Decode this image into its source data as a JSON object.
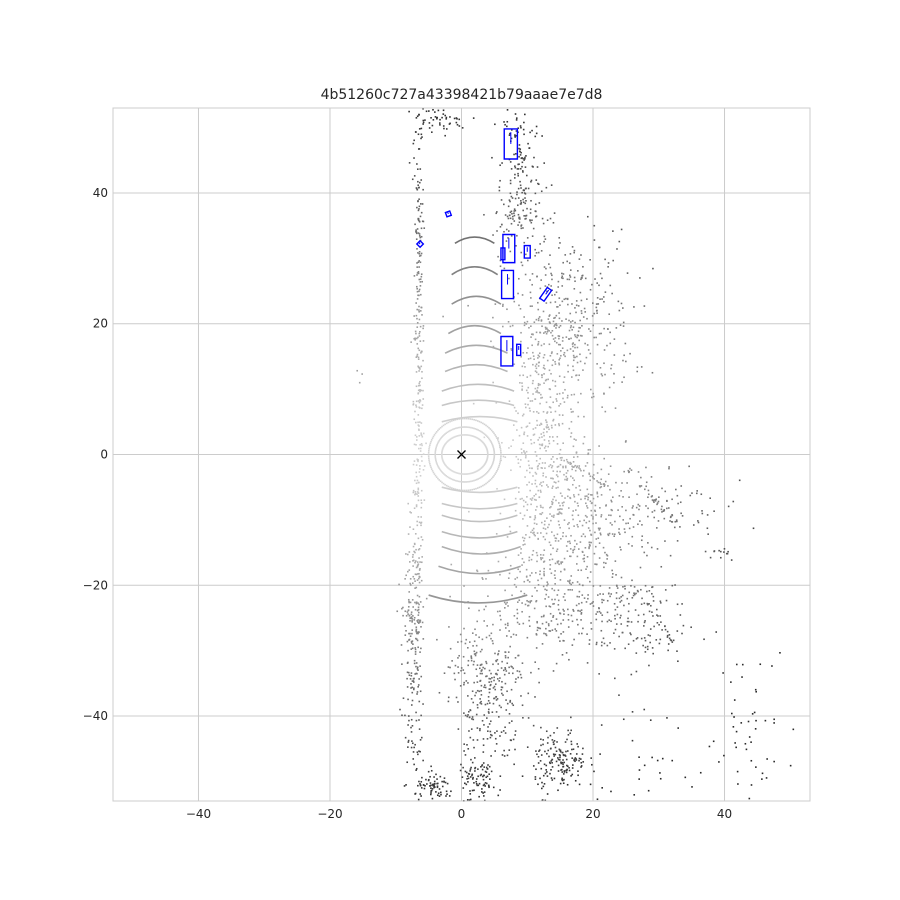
{
  "chart_data": {
    "type": "scatter",
    "title": "4b51260c727a43398421b79aaae7e7d8",
    "xlabel": "",
    "ylabel": "",
    "xlim": [
      -53,
      53
    ],
    "ylim": [
      -53,
      53
    ],
    "xticks": [
      -40,
      -20,
      0,
      20,
      40
    ],
    "yticks": [
      -40,
      -20,
      0,
      20,
      40
    ],
    "grid": true,
    "aspect": "equal",
    "ego_marker": {
      "x": 0,
      "y": 0,
      "symbol": "x",
      "color": "#000000"
    },
    "point_color_scale": {
      "near": "#e6e6e6",
      "far": "#2b2b2b"
    },
    "box_color": "#0000ff",
    "boxes": [
      {
        "cx": 7.5,
        "cy": 47.5,
        "w": 2.0,
        "l": 4.6,
        "yaw": 0,
        "heading_len": 1.8
      },
      {
        "cx": -2.0,
        "cy": 36.8,
        "w": 0.7,
        "l": 0.7,
        "yaw": 20,
        "heading_len": 0.3
      },
      {
        "cx": -6.3,
        "cy": 32.2,
        "w": 0.7,
        "l": 0.7,
        "yaw": 45,
        "heading_len": 0.3
      },
      {
        "cx": 7.2,
        "cy": 31.5,
        "w": 1.8,
        "l": 4.3,
        "yaw": 0,
        "heading_len": 1.6
      },
      {
        "cx": 6.3,
        "cy": 30.7,
        "w": 0.6,
        "l": 1.8,
        "yaw": 0,
        "heading_len": 0.7
      },
      {
        "cx": 10.0,
        "cy": 31.0,
        "w": 0.9,
        "l": 1.9,
        "yaw": 0,
        "heading_len": 0.7
      },
      {
        "cx": 7.0,
        "cy": 26.0,
        "w": 1.8,
        "l": 4.3,
        "yaw": 0,
        "heading_len": 1.6
      },
      {
        "cx": 12.8,
        "cy": 24.5,
        "w": 0.8,
        "l": 2.0,
        "yaw": -35,
        "heading_len": 0.8
      },
      {
        "cx": 6.9,
        "cy": 15.8,
        "w": 1.8,
        "l": 4.5,
        "yaw": 0,
        "heading_len": 1.7
      },
      {
        "cx": 8.7,
        "cy": 16.0,
        "w": 0.6,
        "l": 1.7,
        "yaw": 0,
        "heading_len": 0.6
      }
    ],
    "arcs": [
      {
        "x1": -1.0,
        "x2": 5.0,
        "y": 33.5,
        "bend": 1.2
      },
      {
        "x1": -1.5,
        "x2": 5.5,
        "y": 29.0,
        "bend": 1.5
      },
      {
        "x1": -1.5,
        "x2": 6.0,
        "y": 24.5,
        "bend": 1.5
      },
      {
        "x1": -2.0,
        "x2": 6.0,
        "y": 20.0,
        "bend": 1.5
      },
      {
        "x1": -2.5,
        "x2": 7.0,
        "y": 17.0,
        "bend": 1.5
      },
      {
        "x1": -2.5,
        "x2": 7.0,
        "y": 14.0,
        "bend": 1.3
      },
      {
        "x1": -3.0,
        "x2": 8.0,
        "y": 11.0,
        "bend": 1.3
      },
      {
        "x1": -3.0,
        "x2": 8.0,
        "y": 8.5,
        "bend": 1.0
      },
      {
        "x1": -3.0,
        "x2": 8.5,
        "y": 6.0,
        "bend": 1.0
      },
      {
        "x1": -3.0,
        "x2": 8.5,
        "y": -6.0,
        "bend": -1.0
      },
      {
        "x1": -3.0,
        "x2": 8.5,
        "y": -8.5,
        "bend": -1.0
      },
      {
        "x1": -3.0,
        "x2": 8.5,
        "y": -10.5,
        "bend": -1.2
      },
      {
        "x1": -3.0,
        "x2": 8.5,
        "y": -13.0,
        "bend": -1.2
      },
      {
        "x1": -3.0,
        "x2": 9.0,
        "y": -15.5,
        "bend": -1.4
      },
      {
        "x1": -3.5,
        "x2": 9.0,
        "y": -18.5,
        "bend": -1.4
      },
      {
        "x1": -5.0,
        "x2": 10.0,
        "y": -23.0,
        "bend": -1.5
      }
    ],
    "rings": [
      {
        "rx": 3.5,
        "ry": 3.0
      },
      {
        "rx": 4.5,
        "ry": 4.2
      },
      {
        "rx": 5.5,
        "ry": 5.5
      }
    ],
    "clusters": [
      {
        "x": -6.5,
        "y": 10,
        "sx": 0.4,
        "sy": 30,
        "n": 380
      },
      {
        "x": -7.5,
        "y": -30,
        "sx": 0.7,
        "sy": 10,
        "n": 160
      },
      {
        "x": -4.0,
        "y": 51,
        "sx": 2.5,
        "sy": 1.0,
        "n": 50
      },
      {
        "x": 9.0,
        "y": 44,
        "sx": 1.5,
        "sy": 6,
        "n": 140
      },
      {
        "x": 16.0,
        "y": 20,
        "sx": 5,
        "sy": 7,
        "n": 380
      },
      {
        "x": 12.0,
        "y": 2,
        "sx": 2.5,
        "sy": 12,
        "n": 420
      },
      {
        "x": 17.0,
        "y": -10,
        "sx": 4,
        "sy": 6,
        "n": 300
      },
      {
        "x": 28.0,
        "y": -8,
        "sx": 6,
        "sy": 4,
        "n": 120
      },
      {
        "x": 13.0,
        "y": -23,
        "sx": 6,
        "sy": 4,
        "n": 250
      },
      {
        "x": 25.0,
        "y": -25,
        "sx": 5,
        "sy": 4,
        "n": 140
      },
      {
        "x": 4.0,
        "y": -32,
        "sx": 3,
        "sy": 3,
        "n": 160
      },
      {
        "x": 4.0,
        "y": -40,
        "sx": 2.5,
        "sy": 4,
        "n": 130
      },
      {
        "x": 15.0,
        "y": -47,
        "sx": 2,
        "sy": 2.5,
        "n": 170
      },
      {
        "x": -4.0,
        "y": -51,
        "sx": 1.5,
        "sy": 1.0,
        "n": 70
      },
      {
        "x": 2.5,
        "y": -50,
        "sx": 1.5,
        "sy": 2,
        "n": 90
      },
      {
        "x": 43.0,
        "y": -40,
        "sx": 4,
        "sy": 6,
        "n": 50
      },
      {
        "x": 40.0,
        "y": -15,
        "sx": 1.5,
        "sy": 0.5,
        "n": 12
      },
      {
        "x": -16.0,
        "y": 12,
        "sx": 0.3,
        "sy": 0.5,
        "n": 3
      },
      {
        "x": 26.0,
        "y": -47,
        "sx": 4,
        "sy": 4,
        "n": 30
      },
      {
        "x": 9.0,
        "y": 37,
        "sx": 2,
        "sy": 2,
        "n": 60
      }
    ],
    "streaks": [
      {
        "x1": 16,
        "y1": -1,
        "x2": 22,
        "y2": -5,
        "n": 30
      },
      {
        "x1": 25,
        "y1": -2,
        "x2": 33,
        "y2": -11,
        "n": 40
      },
      {
        "x1": 26,
        "y1": -20,
        "x2": 33,
        "y2": -30,
        "n": 25
      },
      {
        "x1": -9,
        "y1": -24,
        "x2": -6,
        "y2": -26,
        "n": 20
      }
    ]
  }
}
